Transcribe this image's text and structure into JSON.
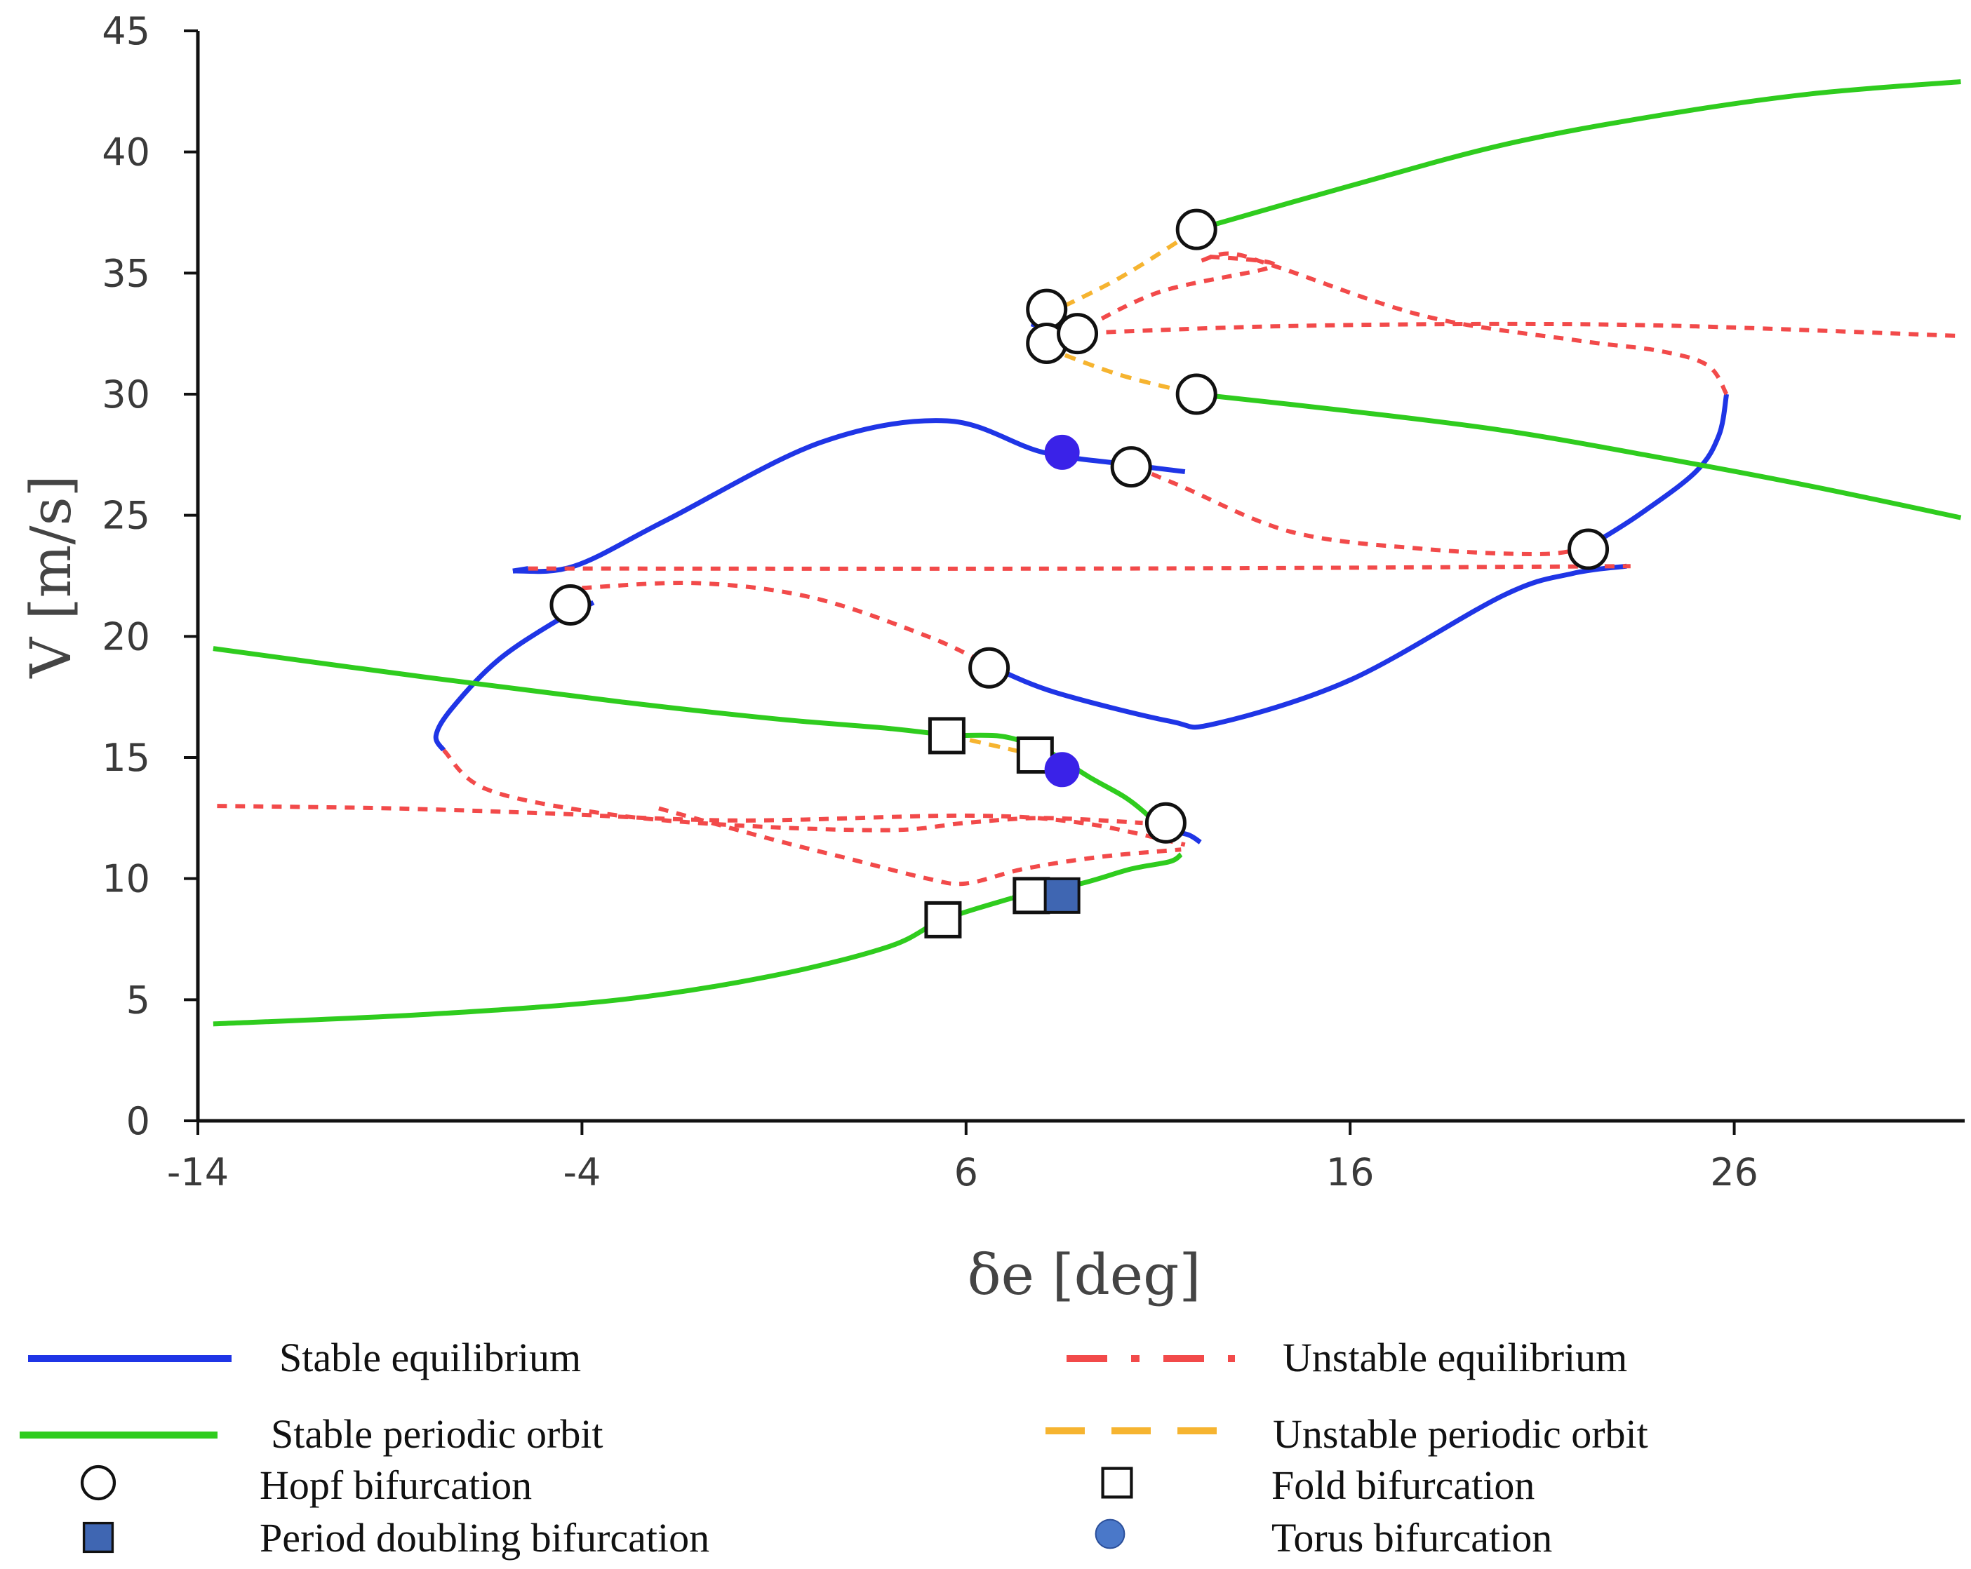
{
  "chart_data": {
    "type": "line",
    "title": "",
    "xlabel": "δe [deg]",
    "ylabel": "V [m/s]",
    "xlim": [
      -14,
      32
    ],
    "ylim": [
      0,
      45
    ],
    "xticks": [
      -14,
      -4,
      6,
      16,
      26
    ],
    "yticks": [
      0,
      5,
      10,
      15,
      20,
      25,
      30,
      35,
      40,
      45
    ],
    "grid": false,
    "colors": {
      "stable_equilibrium": "#1f35e6",
      "unstable_equilibrium": "#f24a4a",
      "stable_periodic": "#2fcc1e",
      "unstable_periodic": "#f6b430",
      "marker_fill": "#ffffff",
      "marker_edge": "#111111",
      "torus_fill": "#3a22e8",
      "pd_fill": "#3f66b2",
      "legend_torus_fill": "#4a78c9"
    },
    "series": [
      {
        "name": "Stable equilibrium",
        "kind": "stable_equilibrium",
        "x": [
          -5.8,
          -4.2,
          -1.8,
          2.2,
          5.5,
          8.0,
          10.2,
          11.7
        ],
        "y": [
          22.7,
          22.9,
          24.8,
          28.0,
          28.9,
          27.6,
          27.1,
          26.8
        ]
      },
      {
        "name": "Stable equilibrium",
        "kind": "stable_equilibrium",
        "x": [
          -5.8,
          -5.4
        ],
        "y": [
          22.7,
          22.8
        ]
      },
      {
        "name": "Stable equilibrium",
        "kind": "stable_equilibrium",
        "x": [
          -3.7,
          -4.7,
          -6.2,
          -7.4,
          -7.8,
          -7.6
        ],
        "y": [
          21.4,
          20.6,
          19.0,
          17.0,
          15.9,
          15.3
        ]
      },
      {
        "name": "Stable equilibrium",
        "kind": "stable_equilibrium",
        "x": [
          6.6,
          8.3,
          11.3,
          12.5,
          16.0,
          20.0,
          21.8,
          23.2
        ],
        "y": [
          18.8,
          17.7,
          16.5,
          16.4,
          18.2,
          21.7,
          22.6,
          22.9
        ]
      },
      {
        "name": "Stable equilibrium",
        "kind": "stable_equilibrium",
        "x": [
          22.2,
          23.5,
          25.0,
          25.6,
          25.8
        ],
        "y": [
          23.7,
          25.0,
          26.8,
          28.3,
          30.0
        ]
      },
      {
        "name": "Stable equilibrium",
        "kind": "stable_equilibrium",
        "x": [
          7.7,
          8.2
        ],
        "y": [
          32.9,
          32.7
        ]
      },
      {
        "name": "Stable equilibrium",
        "kind": "stable_equilibrium",
        "x": [
          10.9,
          11.3,
          11.8,
          12.1
        ],
        "y": [
          12.3,
          12.0,
          11.8,
          11.5
        ]
      },
      {
        "name": "Unstable equilibrium",
        "kind": "unstable_equilibrium",
        "x": [
          -5.4,
          10.0,
          23.3
        ],
        "y": [
          22.8,
          22.8,
          22.9
        ]
      },
      {
        "name": "Unstable equilibrium",
        "kind": "unstable_equilibrium",
        "x": [
          -4.0,
          -1.0,
          2.0,
          5.0,
          6.6
        ],
        "y": [
          22.0,
          22.2,
          21.6,
          20.0,
          18.8
        ]
      },
      {
        "name": "Unstable equilibrium",
        "kind": "unstable_equilibrium",
        "x": [
          10.4,
          11.6,
          14.5,
          18.0,
          21.0,
          22.2
        ],
        "y": [
          27.0,
          26.2,
          24.3,
          23.6,
          23.4,
          23.7
        ]
      },
      {
        "name": "Unstable equilibrium",
        "kind": "unstable_equilibrium",
        "x": [
          25.8,
          25.3,
          24.0,
          22.0,
          18.0,
          14.2,
          12.9,
          12.1
        ],
        "y": [
          30.0,
          31.2,
          31.8,
          32.2,
          33.2,
          35.2,
          35.8,
          35.5
        ]
      },
      {
        "name": "Unstable equilibrium",
        "kind": "unstable_equilibrium",
        "x": [
          8.7,
          11.0,
          14.0,
          12.2
        ],
        "y": [
          32.4,
          34.2,
          35.3,
          35.7
        ]
      },
      {
        "name": "Unstable equilibrium",
        "kind": "unstable_equilibrium",
        "x": [
          8.7,
          14.0,
          20.0,
          25.0,
          31.9
        ],
        "y": [
          32.5,
          32.8,
          32.9,
          32.8,
          32.4
        ]
      },
      {
        "name": "Unstable equilibrium",
        "kind": "unstable_equilibrium",
        "x": [
          -13.5,
          -9.0,
          -5.0,
          0.0,
          6.0,
          9.0,
          11.7
        ],
        "y": [
          13.0,
          12.9,
          12.7,
          12.4,
          12.6,
          12.3,
          11.4
        ]
      },
      {
        "name": "Unstable equilibrium",
        "kind": "unstable_equilibrium",
        "x": [
          -7.6,
          -6.5,
          -3.5,
          0.0,
          4.0,
          6.0,
          8.0,
          10.6
        ],
        "y": [
          15.3,
          13.7,
          12.7,
          12.2,
          12.0,
          12.3,
          12.5,
          12.3
        ]
      },
      {
        "name": "Unstable equilibrium",
        "kind": "unstable_equilibrium",
        "x": [
          -2.0,
          1.0,
          3.0,
          5.0,
          6.0,
          7.5,
          9.5,
          11.6
        ],
        "y": [
          12.9,
          11.6,
          10.8,
          10.0,
          9.8,
          10.4,
          10.9,
          11.2
        ]
      },
      {
        "name": "Stable periodic orbit",
        "kind": "stable_periodic",
        "x": [
          -13.6,
          -8.0,
          -3.0,
          1.0,
          4.0,
          5.6
        ],
        "y": [
          19.5,
          18.3,
          17.3,
          16.6,
          16.2,
          15.9
        ]
      },
      {
        "name": "Stable periodic orbit",
        "kind": "stable_periodic",
        "x": [
          5.6,
          6.8,
          7.6,
          8.2,
          9.2,
          10.1,
          10.6,
          11.0
        ],
        "y": [
          15.9,
          15.9,
          15.6,
          15.2,
          14.2,
          13.4,
          12.8,
          12.2
        ]
      },
      {
        "name": "Stable periodic orbit",
        "kind": "stable_periodic",
        "x": [
          -13.6,
          -8.0,
          -3.0,
          1.0,
          4.0,
          5.4,
          7.2
        ],
        "y": [
          4.0,
          4.4,
          5.0,
          6.0,
          7.2,
          8.3,
          9.2
        ]
      },
      {
        "name": "Stable periodic orbit",
        "kind": "stable_periodic",
        "x": [
          7.2,
          9.0,
          10.3,
          11.3,
          11.6
        ],
        "y": [
          9.2,
          9.8,
          10.4,
          10.7,
          11.0
        ]
      },
      {
        "name": "Stable periodic orbit",
        "kind": "stable_periodic",
        "x": [
          12.0,
          16.0,
          20.0,
          24.0,
          28.0,
          31.9
        ],
        "y": [
          36.8,
          38.6,
          40.3,
          41.5,
          42.4,
          42.9
        ]
      },
      {
        "name": "Stable periodic orbit",
        "kind": "stable_periodic",
        "x": [
          12.0,
          16.0,
          20.0,
          24.0,
          28.0,
          31.9
        ],
        "y": [
          30.0,
          29.3,
          28.5,
          27.4,
          26.2,
          24.9
        ]
      },
      {
        "name": "Unstable periodic orbit",
        "kind": "unstable_periodic",
        "x": [
          8.1,
          10.0,
          12.0
        ],
        "y": [
          33.3,
          34.8,
          36.8
        ]
      },
      {
        "name": "Unstable periodic orbit",
        "kind": "unstable_periodic",
        "x": [
          8.1,
          10.0,
          12.0
        ],
        "y": [
          31.9,
          30.8,
          30.0
        ]
      },
      {
        "name": "Unstable periodic orbit",
        "kind": "unstable_periodic",
        "x": [
          5.6,
          7.8
        ],
        "y": [
          15.9,
          15.1
        ]
      }
    ],
    "markers": [
      {
        "type": "Hopf bifurcation",
        "shape": "hopf",
        "x": -4.3,
        "y": 21.3
      },
      {
        "type": "Hopf bifurcation",
        "shape": "hopf",
        "x": 6.6,
        "y": 18.7
      },
      {
        "type": "Hopf bifurcation",
        "shape": "hopf",
        "x": 11.2,
        "y": 12.3
      },
      {
        "type": "Hopf bifurcation",
        "shape": "hopf",
        "x": 10.3,
        "y": 27.0
      },
      {
        "type": "Hopf bifurcation",
        "shape": "hopf",
        "x": 22.2,
        "y": 23.6
      },
      {
        "type": "Hopf bifurcation",
        "shape": "hopf",
        "x": 8.1,
        "y": 33.5
      },
      {
        "type": "Hopf bifurcation",
        "shape": "hopf",
        "x": 8.1,
        "y": 32.1
      },
      {
        "type": "Hopf bifurcation",
        "shape": "hopf",
        "x": 8.9,
        "y": 32.5
      },
      {
        "type": "Hopf bifurcation",
        "shape": "hopf",
        "x": 12.0,
        "y": 36.8
      },
      {
        "type": "Hopf bifurcation",
        "shape": "hopf",
        "x": 12.0,
        "y": 30.0
      },
      {
        "type": "Fold bifurcation",
        "shape": "fold",
        "x": 5.5,
        "y": 15.9
      },
      {
        "type": "Fold bifurcation",
        "shape": "fold",
        "x": 7.8,
        "y": 15.1
      },
      {
        "type": "Fold bifurcation",
        "shape": "fold",
        "x": 5.4,
        "y": 8.3
      },
      {
        "type": "Fold bifurcation",
        "shape": "fold",
        "x": 7.7,
        "y": 9.3
      },
      {
        "type": "Period doubling bifurcation",
        "shape": "pd",
        "x": 8.5,
        "y": 9.3
      },
      {
        "type": "Torus bifurcation",
        "shape": "torus",
        "x": 8.5,
        "y": 14.5
      },
      {
        "type": "Torus bifurcation",
        "shape": "torus",
        "x": 8.5,
        "y": 27.6
      }
    ],
    "legend": {
      "placement": "bottom",
      "entries": [
        {
          "label": "Stable equilibrium",
          "symbol": "stable_equilibrium"
        },
        {
          "label": "Unstable equilibrium",
          "symbol": "unstable_equilibrium"
        },
        {
          "label": "Stable periodic orbit",
          "symbol": "stable_periodic"
        },
        {
          "label": "Unstable periodic orbit",
          "symbol": "unstable_periodic"
        },
        {
          "label": "Hopf bifurcation",
          "symbol": "hopf"
        },
        {
          "label": "Fold bifurcation",
          "symbol": "fold"
        },
        {
          "label": "Period doubling bifurcation",
          "symbol": "pd"
        },
        {
          "label": "Torus  bifurcation",
          "symbol": "torus"
        }
      ]
    }
  }
}
